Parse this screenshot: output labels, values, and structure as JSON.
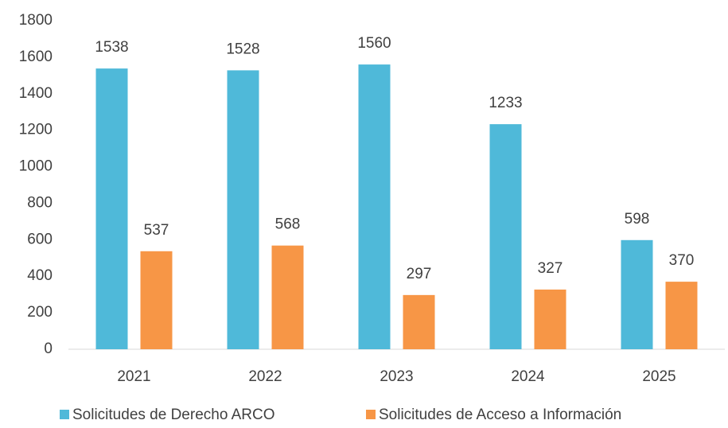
{
  "chart_data": {
    "type": "bar",
    "categories": [
      "2021",
      "2022",
      "2023",
      "2024",
      "2025"
    ],
    "series": [
      {
        "name": "Solicitudes de Derecho ARCO",
        "color": "#4fb9d9",
        "values": [
          1538,
          1528,
          1560,
          1233,
          598
        ]
      },
      {
        "name": "Solicitudes de Acceso a Información",
        "color": "#f79646",
        "values": [
          537,
          568,
          297,
          327,
          370
        ]
      }
    ],
    "ylim": [
      0,
      1800
    ],
    "yticks": [
      0,
      200,
      400,
      600,
      800,
      1000,
      1200,
      1400,
      1600,
      1800
    ],
    "grid": false,
    "legend": "bottom"
  }
}
